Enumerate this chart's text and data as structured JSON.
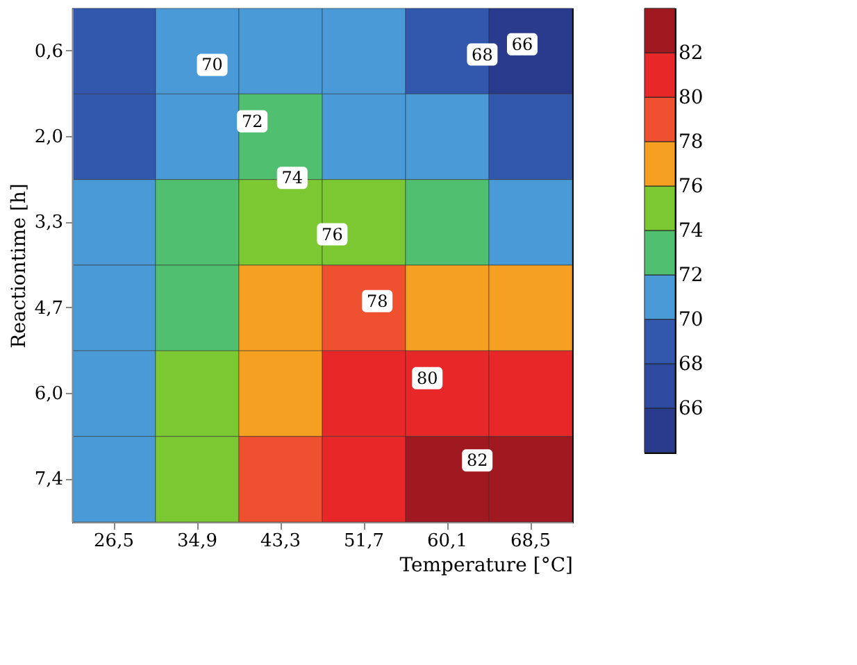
{
  "chart_data": {
    "type": "heatmap",
    "xlabel": "Temperature [°C]",
    "ylabel": "Reactiontime [h]",
    "categories": [
      "26,5",
      "34,9",
      "43,3",
      "51,7",
      "60,1",
      "68,5"
    ],
    "y_categories": [
      "0,6",
      "2,0",
      "3,3",
      "4,7",
      "6,0",
      "7,4"
    ],
    "cells": [
      [
        69,
        70,
        70.5,
        70,
        68.5,
        65.5
      ],
      [
        69.5,
        71,
        72,
        71.5,
        70,
        68
      ],
      [
        70,
        72.5,
        74.5,
        75,
        73.5,
        71
      ],
      [
        70.5,
        73.5,
        76.5,
        78,
        77.5,
        76
      ],
      [
        71,
        74,
        77.5,
        80,
        81,
        80.5
      ],
      [
        71.5,
        74.5,
        78,
        81,
        83.5,
        83
      ]
    ],
    "clim": [
      64,
      84
    ],
    "cticks": [
      66,
      68,
      70,
      72,
      74,
      76,
      78,
      80,
      82
    ],
    "colors": [
      "#2a3a8c",
      "#2d4aa0",
      "#3258ae",
      "#4a9ad8",
      "#50c070",
      "#7cc832",
      "#f5a020",
      "#ee5030",
      "#e82828",
      "#a01820"
    ],
    "annotations": [
      "66",
      "68",
      "70",
      "72",
      "74",
      "76",
      "78",
      "80",
      "82"
    ]
  }
}
